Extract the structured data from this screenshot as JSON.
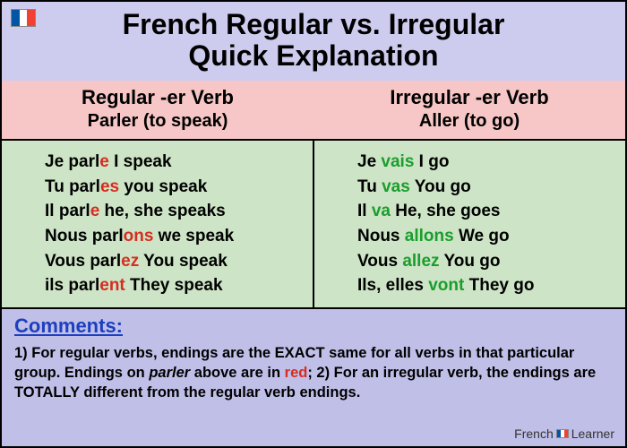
{
  "colors": {
    "header_bg": "#cdccef",
    "subheader_bg": "#f6c7c6",
    "conj_bg": "#cde4c6",
    "comments_bg": "#c0bfe8",
    "highlight_red": "#d62d20",
    "highlight_green": "#1a9e2c",
    "title_color": "#000000",
    "comments_title_color": "#1d3fbf"
  },
  "title_fontsize": 32,
  "flag": {
    "blue": "#0055a4",
    "white": "#ffffff",
    "red": "#ef4135"
  },
  "title_line1": "French Regular vs. Irregular",
  "title_line2": "Quick Explanation",
  "left": {
    "heading1": "Regular -er Verb",
    "heading2": "Parler (to speak)",
    "rows": [
      {
        "pre": "Je parl",
        "hl": "e",
        "post": " I speak"
      },
      {
        "pre": "Tu parl",
        "hl": "es",
        "post": " you speak"
      },
      {
        "pre": "Il parl",
        "hl": "e",
        "post": " he, she speaks"
      },
      {
        "pre": "Nous parl",
        "hl": "ons",
        "post": " we speak"
      },
      {
        "pre": "Vous parl",
        "hl": "ez",
        "post": " You speak"
      },
      {
        "pre": "ils parl",
        "hl": "ent",
        "post": " They speak"
      }
    ]
  },
  "right": {
    "heading1": "Irregular -er Verb",
    "heading2": "Aller (to go)",
    "rows": [
      {
        "pre": "Je ",
        "hl": "vais",
        "post": " I go"
      },
      {
        "pre": "Tu ",
        "hl": "vas",
        "post": " You go"
      },
      {
        "pre": "Il ",
        "hl": "va",
        "post": " He, she goes"
      },
      {
        "pre": "Nous ",
        "hl": "allons",
        "post": " We go"
      },
      {
        "pre": "Vous ",
        "hl": "allez",
        "post": " You go"
      },
      {
        "pre": "Ils, elles ",
        "hl": "vont",
        "post": " They go"
      }
    ]
  },
  "comments": {
    "title": "Comments:",
    "seg1": "1) For regular verbs, endings are the EXACT same for all verbs in that particular group. Endings on ",
    "seg2_ital": "parler",
    "seg3": " above are in ",
    "seg4_red": "red",
    "seg5": "; 2) For an irregular verb, the endings are TOTALLY different from the regular verb endings."
  },
  "brand": {
    "part1": "French",
    "part2": "Learner"
  }
}
